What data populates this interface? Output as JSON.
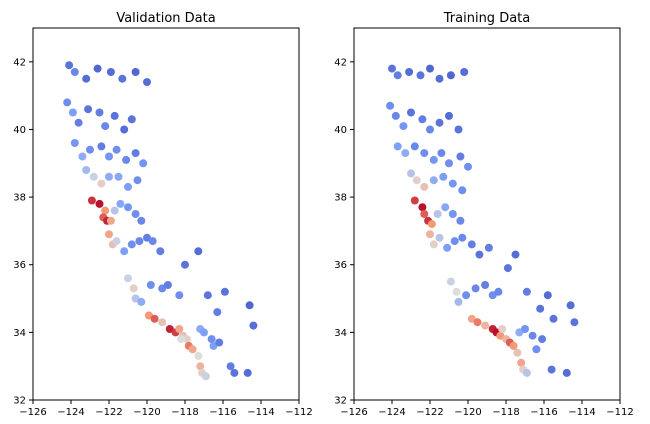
{
  "chart_data": [
    {
      "type": "scatter",
      "title": "Validation Data",
      "xlabel": "",
      "ylabel": "",
      "xlim": [
        -126,
        -112
      ],
      "ylim": [
        32,
        43
      ],
      "xticks": [
        -126,
        -124,
        -122,
        -120,
        -118,
        -116,
        -114,
        -112
      ],
      "yticks": [
        32,
        34,
        36,
        38,
        40,
        42
      ],
      "xtick_labels": [
        "−126",
        "−124",
        "−122",
        "−120",
        "−118",
        "−116",
        "−114",
        "−112"
      ],
      "ytick_labels": [
        "32",
        "34",
        "36",
        "38",
        "40",
        "42"
      ],
      "colormap": "coolwarm",
      "grid": false,
      "points": [
        [
          -124.1,
          41.9,
          0.12
        ],
        [
          -123.8,
          41.7,
          0.18
        ],
        [
          -123.2,
          41.5,
          0.1
        ],
        [
          -122.6,
          41.8,
          0.08
        ],
        [
          -121.9,
          41.7,
          0.1
        ],
        [
          -121.3,
          41.5,
          0.12
        ],
        [
          -120.6,
          41.7,
          0.08
        ],
        [
          -120.0,
          41.4,
          0.1
        ],
        [
          -124.2,
          40.8,
          0.2
        ],
        [
          -123.9,
          40.5,
          0.25
        ],
        [
          -123.6,
          40.2,
          0.15
        ],
        [
          -123.1,
          40.6,
          0.12
        ],
        [
          -122.5,
          40.5,
          0.15
        ],
        [
          -122.2,
          40.1,
          0.18
        ],
        [
          -121.7,
          40.4,
          0.12
        ],
        [
          -121.2,
          40.0,
          0.1
        ],
        [
          -120.8,
          40.3,
          0.12
        ],
        [
          -123.8,
          39.6,
          0.22
        ],
        [
          -123.4,
          39.2,
          0.3
        ],
        [
          -123.0,
          39.4,
          0.2
        ],
        [
          -122.4,
          39.5,
          0.15
        ],
        [
          -122.0,
          39.2,
          0.22
        ],
        [
          -121.6,
          39.4,
          0.2
        ],
        [
          -121.1,
          39.1,
          0.18
        ],
        [
          -120.6,
          39.3,
          0.15
        ],
        [
          -120.2,
          39.0,
          0.22
        ],
        [
          -123.2,
          38.8,
          0.35
        ],
        [
          -122.8,
          38.6,
          0.45
        ],
        [
          -122.4,
          38.4,
          0.55
        ],
        [
          -122.0,
          38.6,
          0.3
        ],
        [
          -121.5,
          38.6,
          0.28
        ],
        [
          -121.0,
          38.3,
          0.25
        ],
        [
          -120.5,
          38.5,
          0.2
        ],
        [
          -122.9,
          37.9,
          0.92
        ],
        [
          -122.5,
          37.8,
          0.98
        ],
        [
          -122.2,
          37.6,
          0.75
        ],
        [
          -122.3,
          37.4,
          0.85
        ],
        [
          -122.1,
          37.3,
          0.95
        ],
        [
          -121.9,
          37.3,
          0.7
        ],
        [
          -121.7,
          37.6,
          0.4
        ],
        [
          -121.4,
          37.8,
          0.28
        ],
        [
          -121.0,
          37.7,
          0.22
        ],
        [
          -120.6,
          37.5,
          0.2
        ],
        [
          -120.3,
          37.3,
          0.18
        ],
        [
          -122.0,
          36.9,
          0.7
        ],
        [
          -121.8,
          36.6,
          0.6
        ],
        [
          -121.6,
          36.7,
          0.45
        ],
        [
          -121.2,
          36.4,
          0.25
        ],
        [
          -120.8,
          36.6,
          0.2
        ],
        [
          -120.4,
          36.7,
          0.18
        ],
        [
          -120.0,
          36.8,
          0.15
        ],
        [
          -119.7,
          36.7,
          0.18
        ],
        [
          -119.3,
          36.4,
          0.15
        ],
        [
          -121.0,
          35.6,
          0.45
        ],
        [
          -120.7,
          35.3,
          0.55
        ],
        [
          -120.6,
          35.0,
          0.4
        ],
        [
          -120.3,
          34.9,
          0.3
        ],
        [
          -119.8,
          35.4,
          0.2
        ],
        [
          -119.2,
          35.3,
          0.18
        ],
        [
          -118.9,
          35.4,
          0.15
        ],
        [
          -119.9,
          34.5,
          0.75
        ],
        [
          -119.6,
          34.4,
          0.85
        ],
        [
          -119.2,
          34.3,
          0.6
        ],
        [
          -118.8,
          34.1,
          0.95
        ],
        [
          -118.5,
          34.0,
          0.9
        ],
        [
          -118.3,
          34.1,
          0.7
        ],
        [
          -118.1,
          33.9,
          0.6
        ],
        [
          -117.9,
          33.8,
          0.55
        ],
        [
          -118.2,
          33.8,
          0.5
        ],
        [
          -117.8,
          33.6,
          0.8
        ],
        [
          -117.6,
          33.5,
          0.7
        ],
        [
          -117.3,
          33.3,
          0.5
        ],
        [
          -117.2,
          33.0,
          0.65
        ],
        [
          -117.1,
          32.8,
          0.55
        ],
        [
          -116.9,
          32.7,
          0.45
        ],
        [
          -117.2,
          34.1,
          0.3
        ],
        [
          -117.0,
          34.0,
          0.25
        ],
        [
          -116.6,
          33.8,
          0.2
        ],
        [
          -116.5,
          33.6,
          0.25
        ],
        [
          -116.2,
          33.7,
          0.15
        ],
        [
          -115.6,
          33.0,
          0.15
        ],
        [
          -115.4,
          32.8,
          0.12
        ],
        [
          -114.7,
          32.8,
          0.1
        ],
        [
          -114.4,
          34.2,
          0.1
        ],
        [
          -114.6,
          34.8,
          0.08
        ],
        [
          -117.3,
          36.4,
          0.1
        ],
        [
          -118.0,
          36.0,
          0.12
        ],
        [
          -116.8,
          35.1,
          0.12
        ],
        [
          -116.3,
          34.6,
          0.15
        ],
        [
          -115.9,
          35.2,
          0.12
        ],
        [
          -118.3,
          35.1,
          0.2
        ]
      ]
    },
    {
      "type": "scatter",
      "title": "Training Data",
      "xlabel": "",
      "ylabel": "",
      "xlim": [
        -126,
        -112
      ],
      "ylim": [
        32,
        43
      ],
      "xticks": [
        -126,
        -124,
        -122,
        -120,
        -118,
        -116,
        -114,
        -112
      ],
      "yticks": [
        32,
        34,
        36,
        38,
        40,
        42
      ],
      "xtick_labels": [
        "−126",
        "−124",
        "−122",
        "−120",
        "−118",
        "−116",
        "−114",
        "−112"
      ],
      "ytick_labels": [
        "32",
        "34",
        "36",
        "38",
        "40",
        "42"
      ],
      "colormap": "coolwarm",
      "grid": false,
      "points": [
        [
          -124.0,
          41.8,
          0.12
        ],
        [
          -123.7,
          41.6,
          0.15
        ],
        [
          -123.1,
          41.7,
          0.1
        ],
        [
          -122.5,
          41.6,
          0.12
        ],
        [
          -122.0,
          41.8,
          0.08
        ],
        [
          -121.5,
          41.5,
          0.1
        ],
        [
          -120.9,
          41.6,
          0.08
        ],
        [
          -120.2,
          41.7,
          0.1
        ],
        [
          -124.1,
          40.7,
          0.2
        ],
        [
          -123.8,
          40.4,
          0.18
        ],
        [
          -123.4,
          40.1,
          0.22
        ],
        [
          -123.0,
          40.5,
          0.12
        ],
        [
          -122.4,
          40.3,
          0.15
        ],
        [
          -122.0,
          40.0,
          0.18
        ],
        [
          -121.5,
          40.2,
          0.12
        ],
        [
          -121.0,
          40.4,
          0.1
        ],
        [
          -120.5,
          40.0,
          0.12
        ],
        [
          -123.7,
          39.5,
          0.25
        ],
        [
          -123.3,
          39.3,
          0.3
        ],
        [
          -122.8,
          39.5,
          0.18
        ],
        [
          -122.3,
          39.3,
          0.2
        ],
        [
          -121.8,
          39.1,
          0.22
        ],
        [
          -121.4,
          39.3,
          0.18
        ],
        [
          -121.0,
          39.0,
          0.2
        ],
        [
          -120.4,
          39.2,
          0.15
        ],
        [
          -120.0,
          38.9,
          0.2
        ],
        [
          -123.0,
          38.7,
          0.4
        ],
        [
          -122.7,
          38.5,
          0.55
        ],
        [
          -122.3,
          38.3,
          0.6
        ],
        [
          -121.8,
          38.5,
          0.3
        ],
        [
          -121.3,
          38.6,
          0.25
        ],
        [
          -120.8,
          38.4,
          0.22
        ],
        [
          -120.3,
          38.2,
          0.2
        ],
        [
          -122.8,
          37.9,
          0.9
        ],
        [
          -122.4,
          37.7,
          0.98
        ],
        [
          -122.3,
          37.5,
          0.85
        ],
        [
          -122.1,
          37.3,
          0.92
        ],
        [
          -121.9,
          37.2,
          0.75
        ],
        [
          -121.6,
          37.5,
          0.4
        ],
        [
          -121.2,
          37.7,
          0.28
        ],
        [
          -120.8,
          37.5,
          0.22
        ],
        [
          -120.4,
          37.3,
          0.18
        ],
        [
          -122.0,
          36.9,
          0.65
        ],
        [
          -121.8,
          36.6,
          0.55
        ],
        [
          -121.5,
          36.8,
          0.4
        ],
        [
          -121.1,
          36.5,
          0.25
        ],
        [
          -120.7,
          36.7,
          0.2
        ],
        [
          -120.3,
          36.8,
          0.18
        ],
        [
          -119.8,
          36.6,
          0.15
        ],
        [
          -119.4,
          36.3,
          0.12
        ],
        [
          -118.9,
          36.5,
          0.15
        ],
        [
          -120.9,
          35.5,
          0.45
        ],
        [
          -120.6,
          35.2,
          0.5
        ],
        [
          -120.5,
          34.9,
          0.35
        ],
        [
          -120.1,
          35.1,
          0.2
        ],
        [
          -119.6,
          35.3,
          0.18
        ],
        [
          -119.1,
          35.4,
          0.15
        ],
        [
          -118.7,
          35.1,
          0.2
        ],
        [
          -119.8,
          34.4,
          0.7
        ],
        [
          -119.5,
          34.3,
          0.8
        ],
        [
          -119.1,
          34.2,
          0.65
        ],
        [
          -118.7,
          34.1,
          0.95
        ],
        [
          -118.5,
          34.0,
          0.98
        ],
        [
          -118.3,
          33.9,
          0.75
        ],
        [
          -118.0,
          33.8,
          0.65
        ],
        [
          -118.2,
          34.1,
          0.55
        ],
        [
          -117.8,
          33.7,
          0.85
        ],
        [
          -117.6,
          33.6,
          0.75
        ],
        [
          -117.4,
          33.4,
          0.6
        ],
        [
          -117.2,
          33.1,
          0.7
        ],
        [
          -117.1,
          32.9,
          0.55
        ],
        [
          -116.9,
          32.8,
          0.4
        ],
        [
          -117.3,
          34.0,
          0.3
        ],
        [
          -117.0,
          34.1,
          0.22
        ],
        [
          -116.6,
          33.9,
          0.18
        ],
        [
          -116.4,
          33.5,
          0.2
        ],
        [
          -116.1,
          33.8,
          0.15
        ],
        [
          -115.6,
          32.9,
          0.12
        ],
        [
          -114.8,
          32.8,
          0.1
        ],
        [
          -114.4,
          34.3,
          0.12
        ],
        [
          -114.6,
          34.8,
          0.1
        ],
        [
          -117.9,
          35.9,
          0.12
        ],
        [
          -116.9,
          35.2,
          0.15
        ],
        [
          -116.2,
          34.7,
          0.12
        ],
        [
          -115.8,
          35.1,
          0.1
        ],
        [
          -118.4,
          35.2,
          0.18
        ],
        [
          -117.5,
          36.3,
          0.1
        ],
        [
          -115.5,
          34.4,
          0.12
        ]
      ]
    }
  ]
}
